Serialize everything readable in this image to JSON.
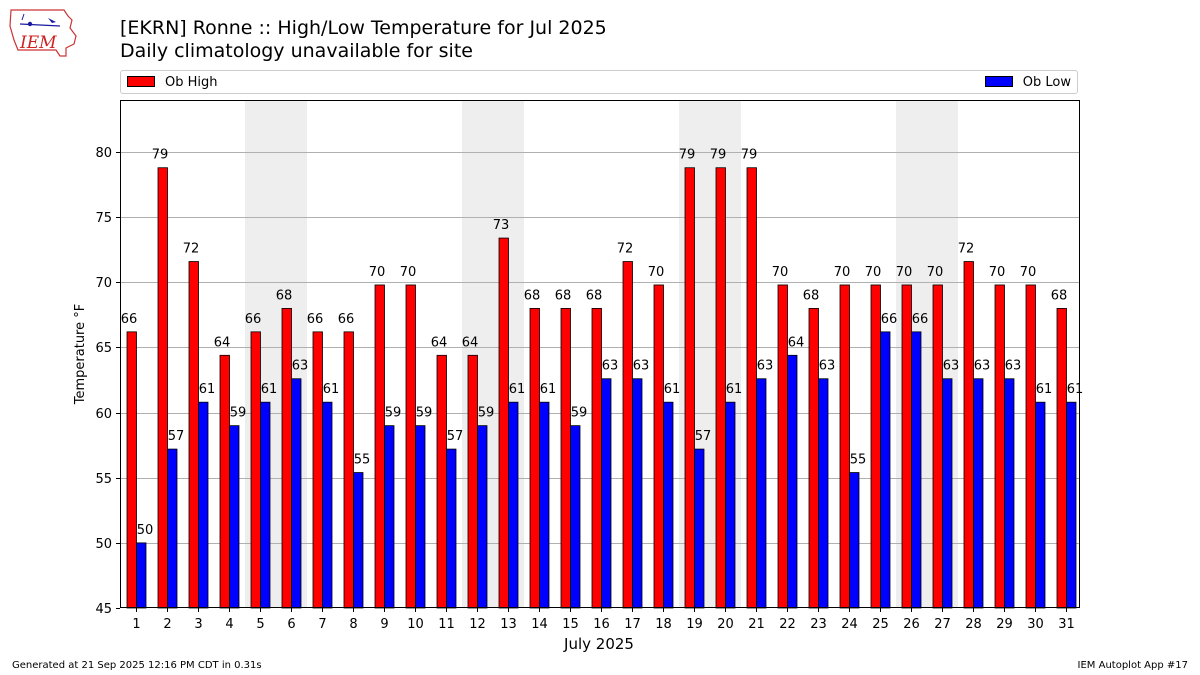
{
  "header": {
    "logo_text": "IEM",
    "title": "[EKRN] Ronne :: High/Low Temperature for Jul 2025",
    "subtitle": "Daily climatology unavailable for site"
  },
  "footer": {
    "generated": "Generated at 21 Sep 2025 12:16 PM CDT in 0.31s",
    "app": "IEM Autoplot App #17"
  },
  "colors": {
    "high": "#ff0000",
    "low": "#0000ff",
    "weekend_shade": "#eeeeee",
    "grid": "#b0b0b0"
  },
  "chart_data": {
    "type": "bar",
    "title": "[EKRN] Ronne :: High/Low Temperature for Jul 2025",
    "xlabel": "July 2025",
    "ylabel": "Temperature °F",
    "ylim": [
      45,
      84
    ],
    "yticks": [
      45,
      50,
      55,
      60,
      65,
      70,
      75,
      80
    ],
    "grid": "horizontal",
    "legend_placement": "top, above plot",
    "categories": [
      1,
      2,
      3,
      4,
      5,
      6,
      7,
      8,
      9,
      10,
      11,
      12,
      13,
      14,
      15,
      16,
      17,
      18,
      19,
      20,
      21,
      22,
      23,
      24,
      25,
      26,
      27,
      28,
      29,
      30,
      31
    ],
    "shaded_days": [
      5,
      6,
      12,
      13,
      19,
      20,
      26,
      27
    ],
    "series": [
      {
        "name": "Ob High",
        "values": [
          66.2,
          78.8,
          71.6,
          64.4,
          66.2,
          68.0,
          66.2,
          66.2,
          69.8,
          69.8,
          64.4,
          64.4,
          73.4,
          68.0,
          68.0,
          68.0,
          71.6,
          69.8,
          78.8,
          78.8,
          78.8,
          69.8,
          68.0,
          69.8,
          69.8,
          69.8,
          69.8,
          71.6,
          69.8,
          69.8,
          68.0
        ],
        "labels": [
          "66",
          "79",
          "72",
          "64",
          "66",
          "68",
          "66",
          "66",
          "70",
          "70",
          "64",
          "64",
          "73",
          "68",
          "68",
          "68",
          "72",
          "70",
          "79",
          "79",
          "79",
          "70",
          "68",
          "70",
          "70",
          "70",
          "70",
          "72",
          "70",
          "70",
          "68"
        ]
      },
      {
        "name": "Ob Low",
        "values": [
          50.0,
          57.2,
          60.8,
          59.0,
          60.8,
          62.6,
          60.8,
          55.4,
          59.0,
          59.0,
          57.2,
          59.0,
          60.8,
          60.8,
          59.0,
          62.6,
          62.6,
          60.8,
          57.2,
          60.8,
          62.6,
          64.4,
          62.6,
          55.4,
          66.2,
          66.2,
          62.6,
          62.6,
          62.6,
          60.8,
          60.8
        ],
        "labels": [
          "50",
          "57",
          "61",
          "59",
          "61",
          "63",
          "61",
          "55",
          "59",
          "59",
          "57",
          "59",
          "61",
          "61",
          "59",
          "63",
          "63",
          "61",
          "57",
          "61",
          "63",
          "64",
          "63",
          "55",
          "66",
          "66",
          "63",
          "63",
          "63",
          "61",
          "61"
        ]
      }
    ]
  }
}
